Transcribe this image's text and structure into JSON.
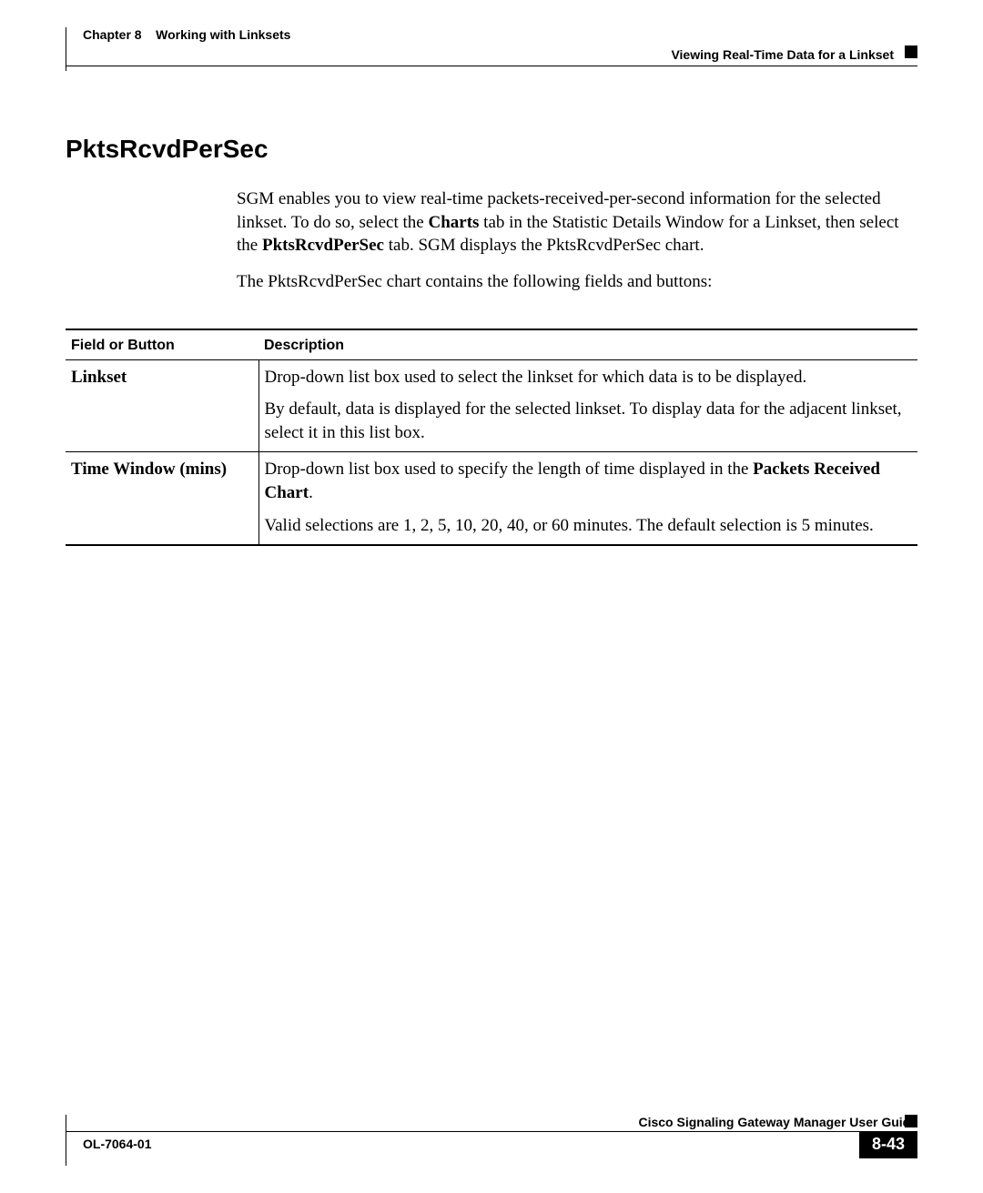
{
  "header": {
    "chapter_label": "Chapter 8",
    "chapter_title": "Working with Linksets",
    "subtitle": "Viewing Real-Time Data for a Linkset"
  },
  "section": {
    "title": "PktsRcvdPerSec",
    "para1_pre": "SGM enables you to view real-time packets-received-per-second information for the selected linkset. To do so, select the ",
    "para1_bold1": "Charts",
    "para1_mid": " tab in the Statistic Details Window for a Linkset, then select the ",
    "para1_bold2": "PktsRcvdPerSec",
    "para1_post": " tab. SGM displays the PktsRcvdPerSec chart.",
    "para2": "The PktsRcvdPerSec chart contains the following fields and buttons:"
  },
  "table": {
    "col_field": "Field or Button",
    "col_desc": "Description",
    "rows": [
      {
        "field": "Linkset",
        "desc_p1": "Drop-down list box used to select the linkset for which data is to be displayed.",
        "desc_p2": "By default, data is displayed for the selected linkset. To display data for the adjacent linkset, select it in this list box."
      },
      {
        "field": "Time Window (mins)",
        "desc_p1_pre": "Drop-down list box used to specify the length of time displayed in the ",
        "desc_p1_bold": "Packets Received Chart",
        "desc_p1_post": ".",
        "desc_p2": "Valid selections are 1, 2, 5, 10, 20, 40, or 60 minutes. The default selection is 5 minutes."
      }
    ]
  },
  "footer": {
    "guide": "Cisco Signaling Gateway Manager User Guide",
    "doc_id": "OL-7064-01",
    "page": "8-43"
  }
}
